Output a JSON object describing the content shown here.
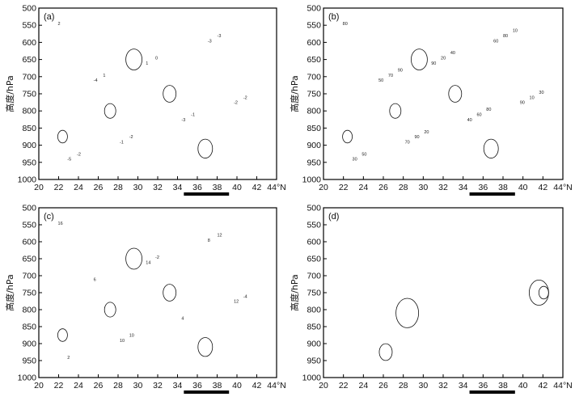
{
  "figure": {
    "y_axis_label": "高度/hPa",
    "y_ticks": [
      "500",
      "550",
      "600",
      "650",
      "700",
      "750",
      "800",
      "850",
      "900",
      "950",
      "1000"
    ],
    "x_ticks": [
      "20",
      "22",
      "24",
      "26",
      "28",
      "30",
      "32",
      "34",
      "36",
      "38",
      "40",
      "42",
      "44°N"
    ],
    "panels": [
      {
        "tag": "(a)",
        "contour_labels": [
          "2",
          "1",
          "-2",
          "-1",
          "-3",
          "-4",
          "-3",
          "-5",
          "0",
          "-2",
          "-2",
          "-3",
          "1",
          "-1",
          "-2"
        ]
      },
      {
        "tag": "(b)",
        "contour_labels": [
          "80",
          "90",
          "90",
          "70",
          "60",
          "50",
          "40",
          "30",
          "20",
          "10",
          "90",
          "80",
          "70",
          "60",
          "50",
          "40",
          "30",
          "20",
          "10",
          "90",
          "80"
        ]
      },
      {
        "tag": "(c)",
        "contour_labels": [
          "16",
          "14",
          "12",
          "10",
          "8",
          "6",
          "4",
          "2",
          "-2",
          "-4",
          "10",
          "12"
        ]
      },
      {
        "tag": "(d)",
        "contour_labels": []
      }
    ]
  }
}
